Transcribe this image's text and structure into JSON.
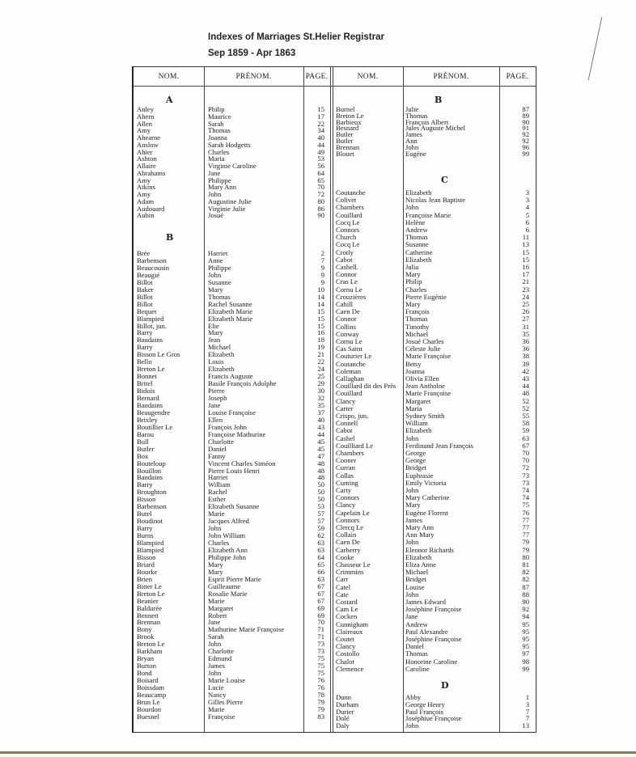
{
  "title": "Indexes of Marriages   St.Helier Registrar",
  "subtitle": "Sep 1859 - Apr 1863",
  "headers": {
    "nom": "NOM.",
    "prenom": "PRÉNOM.",
    "page": "PAGE."
  },
  "left": [
    {
      "letter": "A",
      "rows": [
        [
          "Anley",
          "Philip",
          "15"
        ],
        [
          "Ahern",
          "Maurice",
          "17"
        ],
        [
          "Allen",
          "Sarah",
          "22"
        ],
        [
          "Amy",
          "Thomas",
          "34"
        ],
        [
          "Ahearne",
          "Joanna",
          "40"
        ],
        [
          "Anslow",
          "Sarah Hodgetts",
          "44"
        ],
        [
          "Ahier",
          "Charles",
          "49"
        ],
        [
          "Ashton",
          "Maria",
          "53"
        ],
        [
          "Allaire",
          "Virginie Caroline",
          "56"
        ],
        [
          "Abrahams",
          "Jane",
          "64"
        ],
        [
          "Amy",
          "Philippe",
          "65"
        ],
        [
          "Atkins",
          "Mary Ann",
          "70"
        ],
        [
          "Amy",
          "John",
          "72"
        ],
        [
          "Adam",
          "Augustine Julie",
          "80"
        ],
        [
          "Audouard",
          "Virginie Julie",
          "86"
        ],
        [
          "Aubin",
          "Josué",
          "90"
        ]
      ]
    },
    {
      "letter": "B",
      "rows": [
        [
          "Brée",
          "Harriet",
          "2"
        ],
        [
          "Barbenson",
          "Anne",
          "7"
        ],
        [
          "Beaucousin",
          "Philippe",
          "9"
        ],
        [
          "Beaugié",
          "John",
          "9"
        ],
        [
          "Billot",
          "Susanne",
          "9"
        ],
        [
          "Baker",
          "Mary",
          "10"
        ],
        [
          "Billot",
          "Thomas",
          "14"
        ],
        [
          "Billot",
          "Rachel Susanne",
          "14"
        ],
        [
          "Bequet",
          "Elizabeth Marie",
          "15"
        ],
        [
          "Blampied",
          "Elizabeth Marie",
          "15"
        ],
        [
          "Billot, jun.",
          "Elie",
          "15"
        ],
        [
          "Barry",
          "Mary",
          "16"
        ],
        [
          "Baudains",
          "Jean",
          "18"
        ],
        [
          "Barry",
          "Michael",
          "19"
        ],
        [
          "Bisson Le Gros",
          "Elizabeth",
          "21"
        ],
        [
          "Bello",
          "Louis",
          "22"
        ],
        [
          "Breton Le",
          "Elizabeth",
          "24"
        ],
        [
          "Bonnet",
          "Francis Auguste",
          "25"
        ],
        [
          "Britel",
          "Basile François Adolphe",
          "29"
        ],
        [
          "Bidois",
          "Pierre",
          "30"
        ],
        [
          "Bernard",
          "Joseph",
          "32"
        ],
        [
          "Bandains",
          "Jane",
          "35"
        ],
        [
          "Beaugendre",
          "Louise Françoise",
          "37"
        ],
        [
          "Brixley",
          "Ellen",
          "40"
        ],
        [
          "Boutillier Le",
          "François John",
          "43"
        ],
        [
          "Barou",
          "Françoise Mathurine",
          "44"
        ],
        [
          "Bull",
          "Charlotte",
          "45"
        ],
        [
          "Butler",
          "Daniel",
          "45"
        ],
        [
          "Box",
          "Fanny",
          "47"
        ],
        [
          "Bouteloup",
          "Vincent Charles Siméon",
          "48"
        ],
        [
          "Bouillon",
          "Pierre Louis Henri",
          "48"
        ],
        [
          "Bandains",
          "Harriet",
          "48"
        ],
        [
          "Barry",
          "William",
          "50"
        ],
        [
          "Broughton",
          "Rachel",
          "50"
        ],
        [
          "Bisson",
          "Esther",
          "50"
        ],
        [
          "Barbenson",
          "Elizabeth Susanne",
          "53"
        ],
        [
          "Butel",
          "Marie",
          "57"
        ],
        [
          "Boudinot",
          "Jacques Alfred",
          "57"
        ],
        [
          "Barry",
          "John",
          "59"
        ],
        [
          "Burns",
          "John William",
          "62"
        ],
        [
          "Blampied",
          "Charles",
          "63"
        ],
        [
          "Blampied",
          "Elizabeth Ann",
          "63"
        ],
        [
          "Bisson",
          "Philippe John",
          "64"
        ],
        [
          "Briard",
          "Mary",
          "65"
        ],
        [
          "Bourke",
          "Mary",
          "66"
        ],
        [
          "Brien",
          "Esprit Pierre Marie",
          "63"
        ],
        [
          "Bitter Le",
          "Guilleaume",
          "67"
        ],
        [
          "Breton Le",
          "Rosalie Marie",
          "67"
        ],
        [
          "Beanier",
          "Marie",
          "67"
        ],
        [
          "Baldurée",
          "Margaret",
          "69"
        ],
        [
          "Bennett",
          "Robert",
          "69"
        ],
        [
          "Brennan",
          "Jane",
          "70"
        ],
        [
          "Bony",
          "Mathurine Marie Françoise",
          "71"
        ],
        [
          "Brook",
          "Sarah",
          "71"
        ],
        [
          "Breton Le",
          "John",
          "73"
        ],
        [
          "Barkham",
          "Charlotte",
          "73"
        ],
        [
          "Bryan",
          "Edmund",
          "75"
        ],
        [
          "Burton",
          "James",
          "75"
        ],
        [
          "Bond",
          "John",
          "75"
        ],
        [
          "Boisard",
          "Marie Louise",
          "76"
        ],
        [
          "Boissdam",
          "Lucie",
          "76"
        ],
        [
          "Beaucamp",
          "Nancy",
          "78"
        ],
        [
          "Brun Le",
          "Gilles Pierre",
          "79"
        ],
        [
          "Bourdon",
          "Marie",
          "79"
        ],
        [
          "Buesnel",
          "Françoise",
          "83"
        ]
      ]
    }
  ],
  "right": [
    {
      "letter": "B",
      "rows": [
        [
          "Burnel",
          "Julie",
          "87"
        ],
        [
          "Breton Le",
          "Thomas",
          "89"
        ],
        [
          "Barbieux",
          "François Albert",
          "90"
        ],
        [
          "Besnard",
          "Jules Auguste Michel",
          "91"
        ],
        [
          "Butler",
          "James",
          "92"
        ],
        [
          "Butler",
          "Ann",
          "92"
        ],
        [
          "Brennan",
          "John",
          "96"
        ],
        [
          "Blouet",
          "Eugène",
          "99"
        ]
      ]
    },
    {
      "letter": "C",
      "rows": [
        [
          "Coutanche",
          "Elizabeth",
          "3"
        ],
        [
          "Colivet",
          "Nicolas Jean Baptiste",
          "3"
        ],
        [
          "Chambers",
          "John",
          "4"
        ],
        [
          "Couillard",
          "Françoise Marie",
          "5"
        ],
        [
          "Cocq Le",
          "Helène",
          "6"
        ],
        [
          "Connors",
          "Andrew",
          "6"
        ],
        [
          "Church",
          "Thomas",
          "11"
        ],
        [
          "Cocq Le",
          "Susanne",
          "13"
        ],
        [
          "Crotly",
          "Catherine",
          "15"
        ],
        [
          "Cabot",
          "Elizabeth",
          "15"
        ],
        [
          "Cashell.",
          "Julia",
          "16"
        ],
        [
          "Connor",
          "Mary",
          "17"
        ],
        [
          "Cras Le",
          "Philip",
          "21"
        ],
        [
          "Cornu Le",
          "Charles",
          "23"
        ],
        [
          "Crouzières",
          "Pierre Eugénie",
          "24"
        ],
        [
          "Cahill",
          "Mary",
          "25"
        ],
        [
          "Caen De",
          "François",
          "26"
        ],
        [
          "Connor",
          "Thomas",
          "27"
        ],
        [
          "Collins",
          "Timothy",
          "31"
        ],
        [
          "Conway",
          "Michael",
          "35"
        ],
        [
          "Cornu Le",
          "Josué Charles",
          "36"
        ],
        [
          "Cas Saint",
          "Céleste Julie",
          "36"
        ],
        [
          "Couturier Le",
          "Marie Françoise",
          "38"
        ],
        [
          "Coutanche",
          "Betsy",
          "39"
        ],
        [
          "Coleman",
          "Joanna",
          "42"
        ],
        [
          "Callaghan",
          "Olivia Ellen",
          "43"
        ],
        [
          "Couillard dit des Près",
          "Jean Antholne",
          "44"
        ],
        [
          "Couillard",
          "Marie Françoise",
          "48"
        ],
        [
          "Clancy",
          "Margaret",
          "52"
        ],
        [
          "Carter",
          "Maria",
          "52"
        ],
        [
          "Crispo, jun.",
          "Sydney Smith",
          "55"
        ],
        [
          "Connell",
          "William",
          "58"
        ],
        [
          "Cabot",
          "Elizabeth",
          "59"
        ],
        [
          "Cashel",
          "John",
          "63"
        ],
        [
          "Couilliard Le",
          "Ferdinand Jean François",
          "67"
        ],
        [
          "Chambers",
          "George",
          "70"
        ],
        [
          "Cooner",
          "George",
          "70"
        ],
        [
          "Curran",
          "Bridget",
          "72"
        ],
        [
          "Collas",
          "Euphrasie",
          "73"
        ],
        [
          "Cuming",
          "Emily Victoria",
          "73"
        ],
        [
          "Carty",
          "John",
          "74"
        ],
        [
          "Connors",
          "Mary Catherine",
          "74"
        ],
        [
          "Clancy",
          "Mary",
          "75"
        ],
        [
          "Capelain Le",
          "Eugène Florent",
          "76"
        ],
        [
          "Connors",
          "James",
          "77"
        ],
        [
          "Clercq Le",
          "Mary Ann",
          "77"
        ],
        [
          "Collain",
          "Ann Mary",
          "77"
        ],
        [
          "Caen De",
          "John",
          "79"
        ],
        [
          "Carberry",
          "Eleonor Richards",
          "79"
        ],
        [
          "Cooke",
          "Elizabeth",
          "80"
        ],
        [
          "Chasseur Le",
          "Eliza Anne",
          "81"
        ],
        [
          "Crimmins",
          "Michael",
          "82"
        ],
        [
          "Carr",
          "Bridget",
          "82"
        ],
        [
          "Catel",
          "Louise",
          "87"
        ],
        [
          "Cate",
          "John",
          "88"
        ],
        [
          "Costard",
          "James Edward",
          "90"
        ],
        [
          "Cam Le",
          "Joséphine Françoise",
          "92"
        ],
        [
          "Cocken",
          "Jane",
          "94"
        ],
        [
          "Cunnigham",
          "Andrew",
          "95"
        ],
        [
          "Claireaux",
          "Paul Alexandre",
          "95"
        ],
        [
          "Coutet",
          "Joséphine Françoise",
          "95"
        ],
        [
          "Clancy",
          "Daniel",
          "95"
        ],
        [
          "Costollo",
          "Thomas",
          "97"
        ],
        [
          "Chalot",
          "Honorine Caroline",
          "98"
        ],
        [
          "Clemence",
          "Caroline",
          "99"
        ]
      ]
    },
    {
      "letter": "D",
      "rows": [
        [
          "Dunn",
          "Abby",
          "1"
        ],
        [
          "Durham",
          "George Henry",
          "3"
        ],
        [
          "Durier",
          "Paul François",
          "7"
        ],
        [
          "Dolé",
          "Joséphiue Françoise",
          "7"
        ],
        [
          "Daly",
          "John",
          "13"
        ]
      ]
    }
  ]
}
